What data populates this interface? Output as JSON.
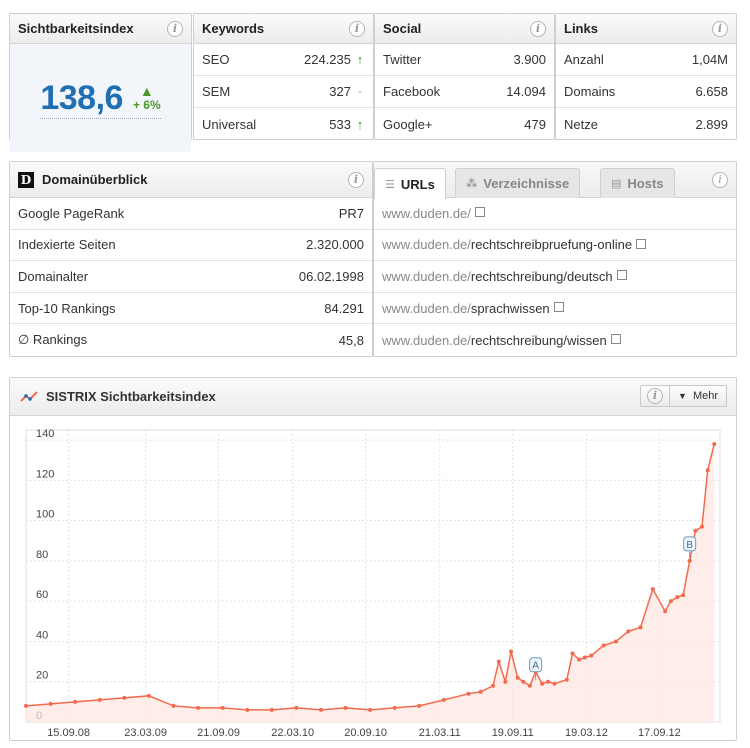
{
  "visibility": {
    "title": "Sichtbarkeitsindex",
    "value": "138,6",
    "change": "+ 6%"
  },
  "keywords": {
    "title": "Keywords",
    "rows": [
      {
        "label": "SEO",
        "value": "224.235",
        "trend": "up"
      },
      {
        "label": "SEM",
        "value": "327",
        "trend": "flat"
      },
      {
        "label": "Universal",
        "value": "533",
        "trend": "up"
      }
    ]
  },
  "social": {
    "title": "Social",
    "rows": [
      {
        "label": "Twitter",
        "value": "3.900"
      },
      {
        "label": "Facebook",
        "value": "14.094"
      },
      {
        "label": "Google+",
        "value": "479"
      }
    ]
  },
  "links": {
    "title": "Links",
    "rows": [
      {
        "label": "Anzahl",
        "value": "1,04M"
      },
      {
        "label": "Domains",
        "value": "6.658"
      },
      {
        "label": "Netze",
        "value": "2.899"
      }
    ]
  },
  "domain": {
    "title": "Domainüberblick",
    "logo_letter": "D",
    "rows": [
      {
        "label": "Google PageRank",
        "value": "PR7"
      },
      {
        "label": "Indexierte Seiten",
        "value": "2.320.000"
      },
      {
        "label": "Domainalter",
        "value": "06.02.1998"
      },
      {
        "label": "Top-10 Rankings",
        "value": "84.291"
      },
      {
        "label": "∅ Rankings",
        "value": "45,8"
      }
    ]
  },
  "urls": {
    "tabs": [
      {
        "label": "URLs",
        "icon": "list-icon",
        "active": true
      },
      {
        "label": "Verzeichnisse",
        "icon": "tree-icon",
        "active": false
      },
      {
        "label": "Hosts",
        "icon": "server-icon",
        "active": false
      }
    ],
    "rows": [
      {
        "host": "www.duden.de/",
        "path": ""
      },
      {
        "host": "www.duden.de/",
        "path": "rechtschreibpruefung-online"
      },
      {
        "host": "www.duden.de/",
        "path": "rechtschreibung/deutsch"
      },
      {
        "host": "www.duden.de/",
        "path": "sprachwissen"
      },
      {
        "host": "www.duden.de/",
        "path": "rechtschreibung/wissen"
      }
    ]
  },
  "chart_panel": {
    "title": "SISTRIX Sichtbarkeitsindex",
    "more_label": "Mehr"
  },
  "colors": {
    "accent": "#1f6fb5",
    "positive": "#4a9a2a",
    "series": "#f26b4f",
    "fill": "#fde5df"
  },
  "chart_data": {
    "type": "area",
    "title": "",
    "xlabel": "",
    "ylabel": "",
    "ylim": [
      0,
      145
    ],
    "yticks": [
      0,
      20,
      40,
      60,
      80,
      100,
      120,
      140
    ],
    "x_tick_labels": [
      "15.09.08",
      "23.03.09",
      "21.09.09",
      "22.03.10",
      "20.09.10",
      "21.03.11",
      "19.09.11",
      "19.03.12",
      "17.09.12"
    ],
    "grid": true,
    "annotations": [
      {
        "label": "A",
        "x": "ca. 11.2011",
        "y": 20
      },
      {
        "label": "B",
        "x": "ca. 12.2012",
        "y": 80
      }
    ],
    "series": [
      {
        "x": [
          "01.06.08",
          "01.08.08",
          "01.10.08",
          "01.12.08",
          "01.02.09",
          "01.04.09",
          "01.06.09",
          "01.08.09",
          "01.10.09",
          "01.12.09",
          "01.02.10",
          "01.04.10",
          "01.06.10",
          "01.08.10",
          "01.10.10",
          "01.12.10",
          "01.02.11",
          "01.04.11",
          "01.06.11",
          "01.07.11",
          "01.08.11",
          "15.08.11",
          "01.09.11",
          "15.09.11",
          "01.10.11",
          "15.10.11",
          "01.11.11",
          "15.11.11",
          "01.12.11",
          "15.12.11",
          "01.01.12",
          "01.02.12",
          "15.02.12",
          "01.03.12",
          "15.03.12",
          "01.04.12",
          "01.05.12",
          "01.06.12",
          "01.07.12",
          "01.08.12",
          "01.09.12",
          "01.10.12",
          "15.10.12",
          "01.11.12",
          "15.11.12",
          "01.12.12",
          "15.12.12",
          "01.01.13",
          "15.01.13",
          "01.02.13"
        ],
        "values": [
          8,
          9,
          10,
          11,
          12,
          13,
          8,
          7,
          7,
          6,
          6,
          7,
          6,
          7,
          6,
          7,
          8,
          11,
          14,
          15,
          18,
          30,
          20,
          35,
          22,
          20,
          18,
          25,
          19,
          20,
          19,
          21,
          34,
          31,
          32,
          33,
          38,
          40,
          45,
          47,
          66,
          55,
          60,
          62,
          63,
          80,
          95,
          97,
          125,
          138
        ]
      }
    ]
  }
}
